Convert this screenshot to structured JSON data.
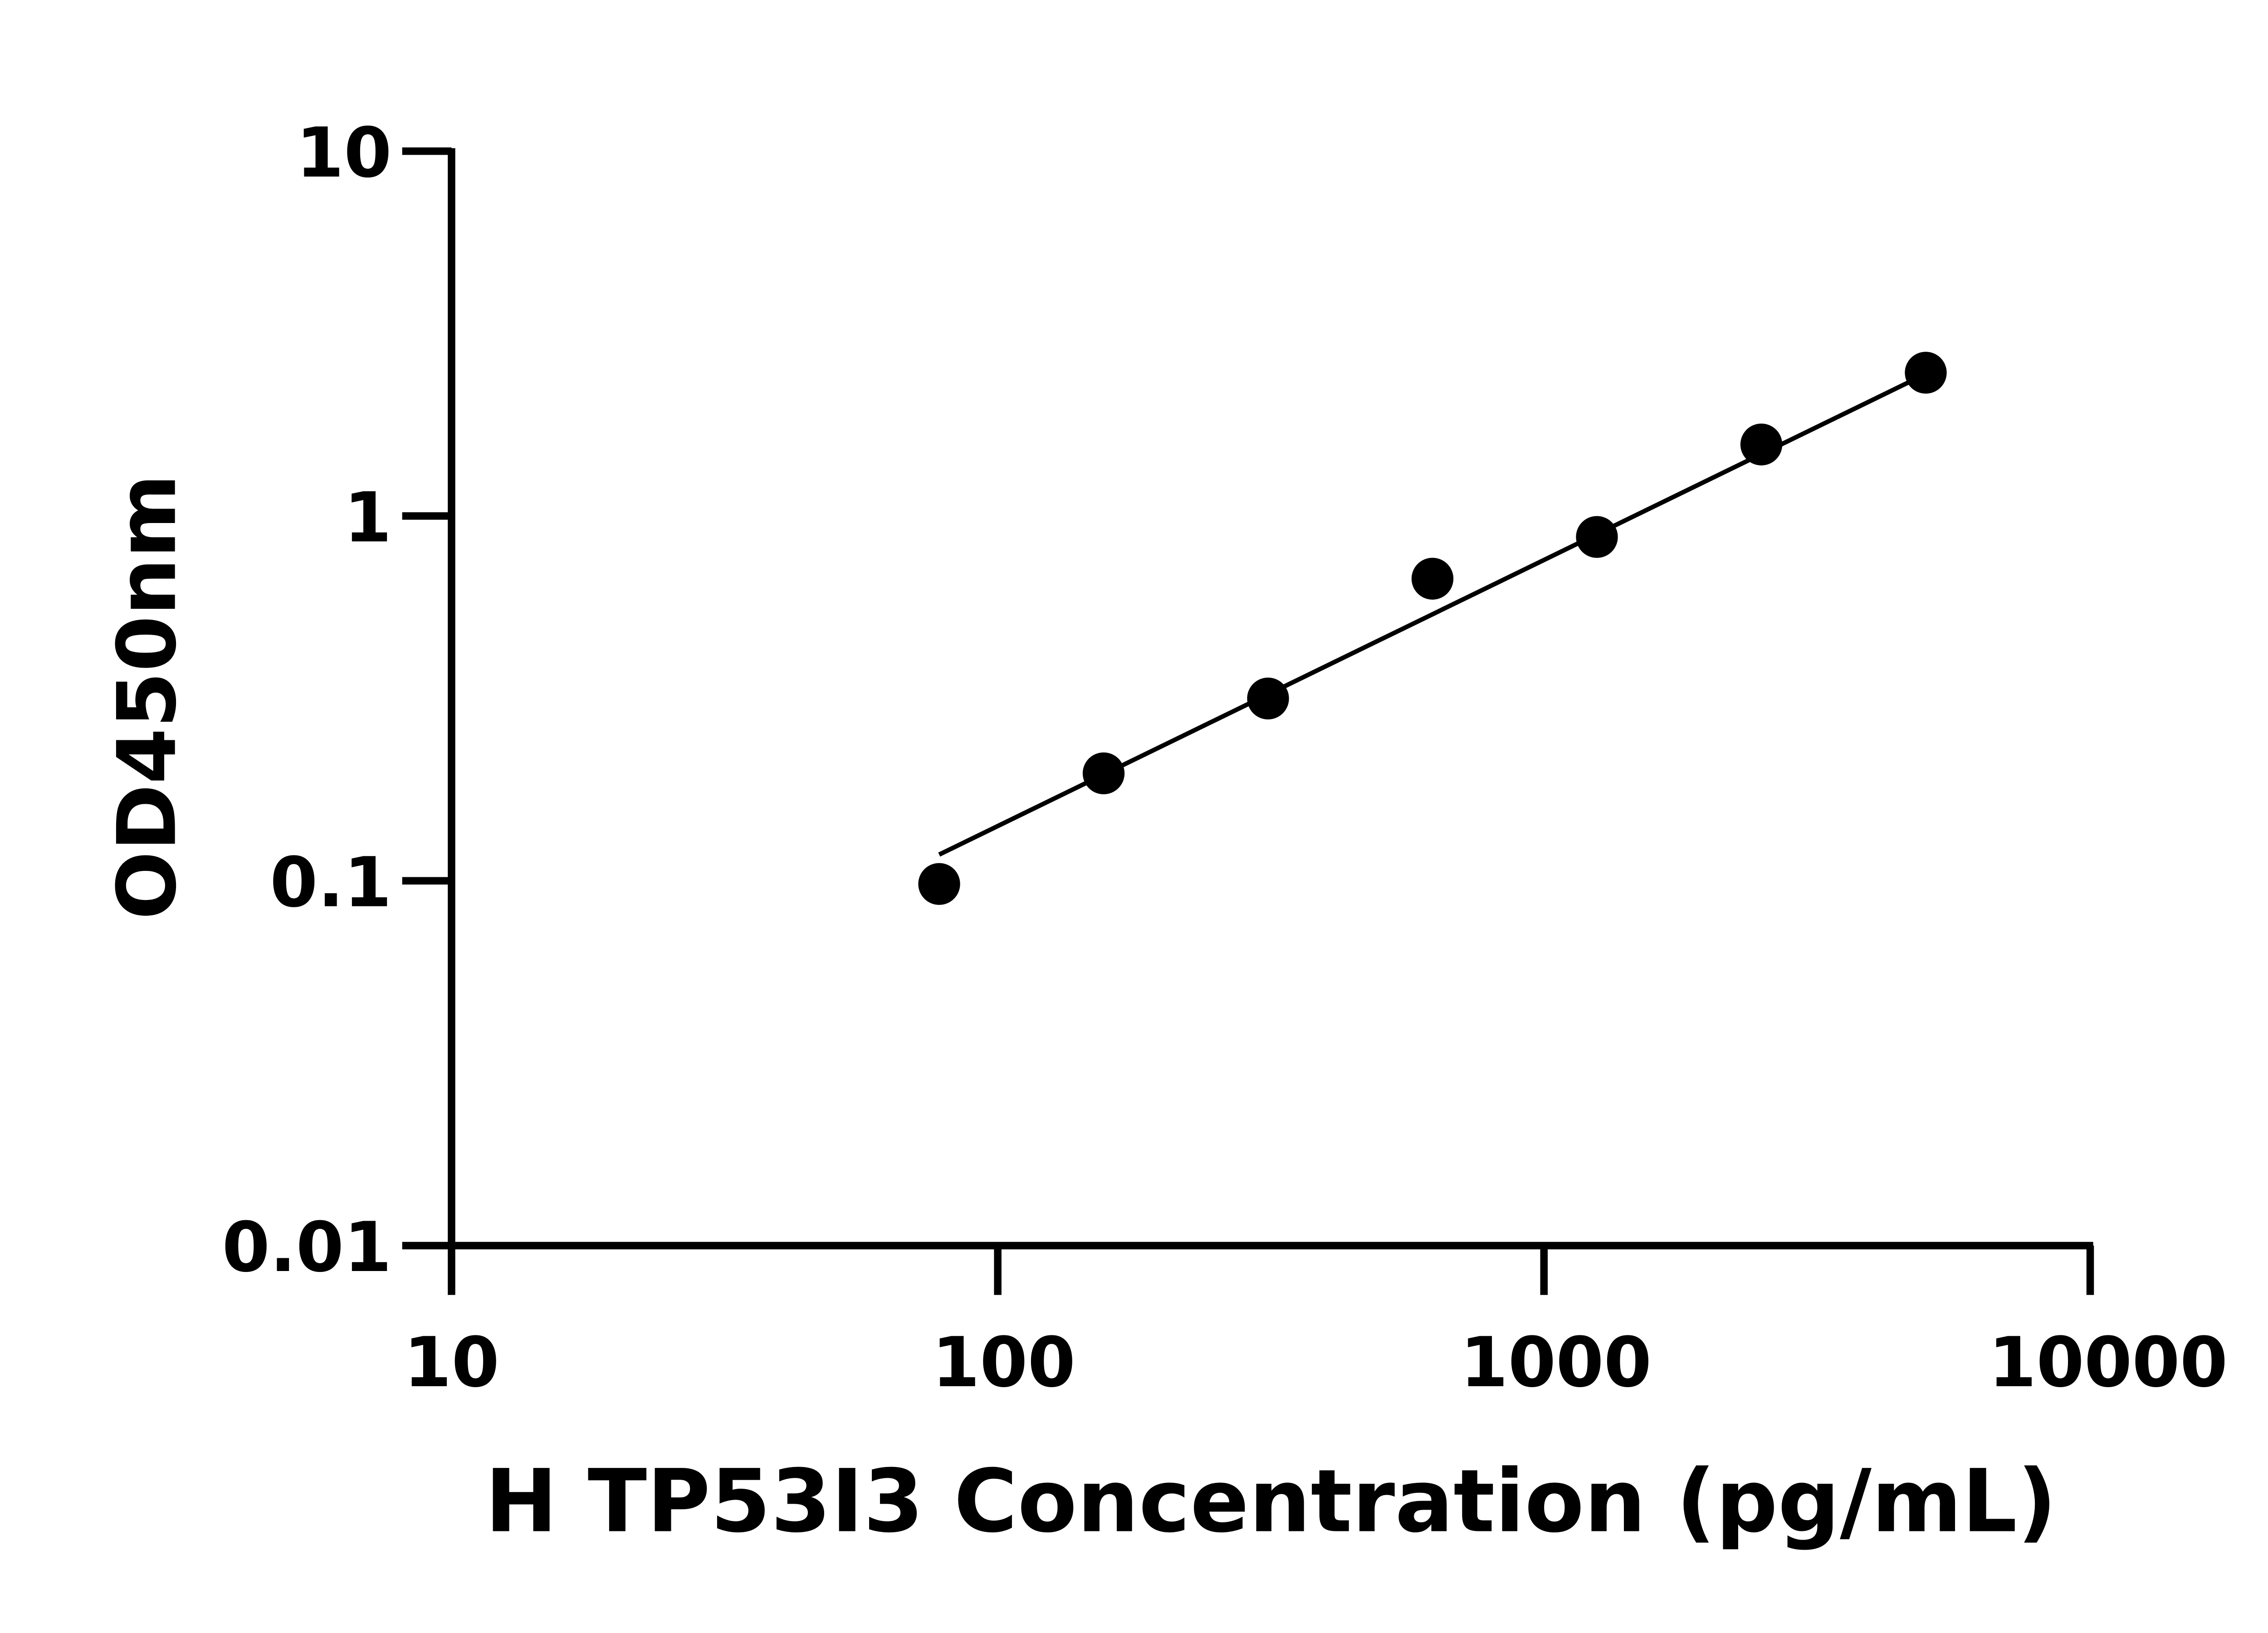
{
  "chart_data": {
    "type": "scatter",
    "title": "",
    "xlabel": "H TP53I3 Concentration (pg/mL)",
    "ylabel": "OD450nm",
    "xscale": "log",
    "yscale": "log",
    "xlim": [
      10,
      10000
    ],
    "ylim": [
      0.01,
      10
    ],
    "xticks": [
      "10",
      "100",
      "1000",
      "10000"
    ],
    "yticks": [
      "0.01",
      "0.1",
      "1",
      "10"
    ],
    "grid": false,
    "legend": "none",
    "series": [
      {
        "x": [
          78.125,
          156.25,
          312.5,
          625,
          1250,
          2500,
          5000
        ],
        "y": [
          0.098,
          0.197,
          0.316,
          0.673,
          0.876,
          1.57,
          2.47
        ],
        "marker": "circle",
        "color": "#000000"
      }
    ],
    "fit_line": {
      "x": [
        78.125,
        5000
      ],
      "y": [
        0.118,
        2.45
      ],
      "color": "#000000"
    }
  }
}
